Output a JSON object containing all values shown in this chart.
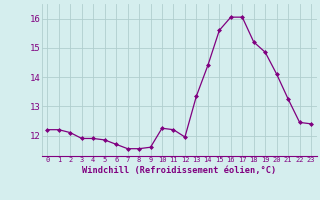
{
  "x": [
    0,
    1,
    2,
    3,
    4,
    5,
    6,
    7,
    8,
    9,
    10,
    11,
    12,
    13,
    14,
    15,
    16,
    17,
    18,
    19,
    20,
    21,
    22,
    23
  ],
  "y": [
    12.2,
    12.2,
    12.1,
    11.9,
    11.9,
    11.85,
    11.7,
    11.55,
    11.55,
    11.6,
    12.25,
    12.2,
    11.95,
    13.35,
    14.4,
    15.6,
    16.05,
    16.05,
    15.2,
    14.85,
    14.1,
    13.25,
    12.45,
    12.4
  ],
  "line_color": "#800080",
  "marker": "D",
  "marker_size": 2.0,
  "bg_color": "#d5eeee",
  "grid_color": "#b0cece",
  "xlabel": "Windchill (Refroidissement éolien,°C)",
  "ylim": [
    11.3,
    16.5
  ],
  "yticks": [
    12,
    13,
    14,
    15,
    16
  ],
  "tick_color": "#800080",
  "label_color": "#800080",
  "font_family": "monospace",
  "xlabel_fontsize": 6.2,
  "xtick_fontsize": 5.0,
  "ytick_fontsize": 6.5
}
